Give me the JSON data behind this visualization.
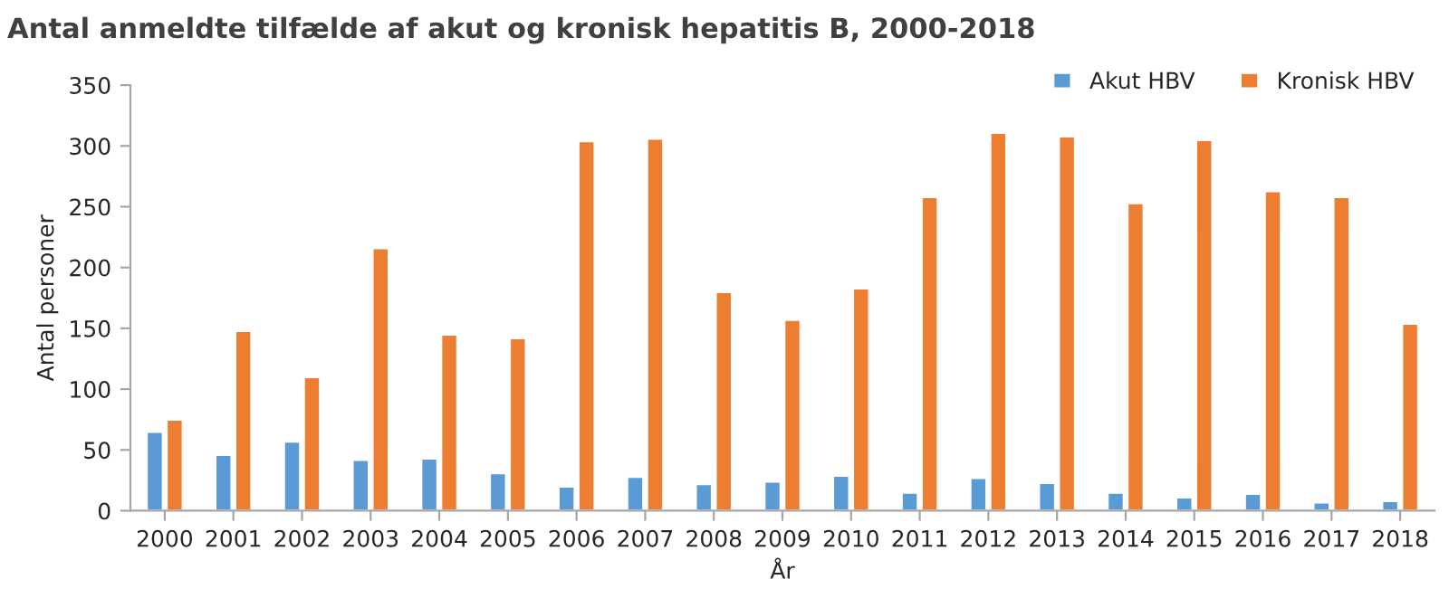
{
  "chart_data": {
    "type": "bar",
    "title": "Antal anmeldte tilfælde af akut og kronisk hepatitis B, 2000-2018",
    "xlabel": "År",
    "ylabel": "Antal personer",
    "categories": [
      "2000",
      "2001",
      "2002",
      "2003",
      "2004",
      "2005",
      "2006",
      "2007",
      "2008",
      "2009",
      "2010",
      "2011",
      "2012",
      "2013",
      "2014",
      "2015",
      "2016",
      "2017",
      "2018"
    ],
    "series": [
      {
        "name": "Akut HBV",
        "color": "#5b9bd5",
        "values": [
          65,
          46,
          57,
          42,
          43,
          31,
          20,
          28,
          22,
          24,
          29,
          15,
          27,
          23,
          15,
          11,
          14,
          7,
          8
        ]
      },
      {
        "name": "Kronisk HBV",
        "color": "#ed7d31",
        "values": [
          75,
          148,
          110,
          216,
          145,
          142,
          304,
          306,
          180,
          157,
          183,
          258,
          311,
          308,
          253,
          305,
          263,
          258,
          154
        ]
      }
    ],
    "ylim": [
      0,
      350
    ],
    "yticks": [
      0,
      50,
      100,
      150,
      200,
      250,
      300,
      350
    ],
    "grid": false,
    "legend": "top right"
  }
}
